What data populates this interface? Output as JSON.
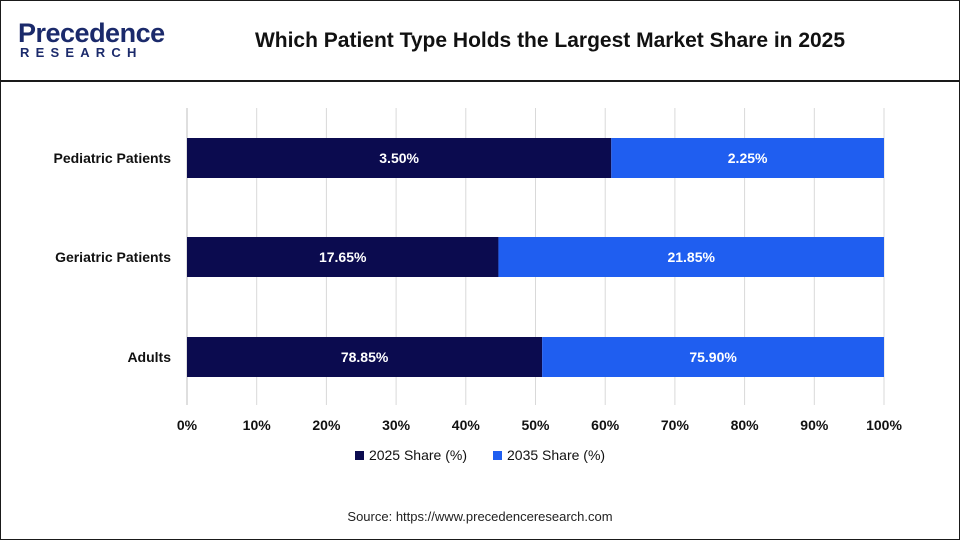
{
  "header": {
    "logo_main": "Precedence",
    "logo_sub": "RESEARCH",
    "title": "Which Patient Type Holds the Largest Market Share in 2025"
  },
  "colors": {
    "series_2025": "#0b0b4f",
    "series_2035": "#1f5ef0",
    "grid": "#d9d9d9",
    "brand": "#1b2a6b"
  },
  "chart_data": {
    "type": "bar",
    "orientation": "horizontal",
    "stacked": true,
    "normalized": "100%",
    "categories": [
      "Pediatric Patients",
      "Geriatric Patients",
      "Adults"
    ],
    "series": [
      {
        "name": "2025 Share (%)",
        "values": [
          3.5,
          17.65,
          78.85
        ],
        "labels": [
          "3.50%",
          "17.65%",
          "78.85%"
        ]
      },
      {
        "name": "2035 Share (%)",
        "values": [
          2.25,
          21.85,
          75.9
        ],
        "labels": [
          "2.25%",
          "21.85%",
          "75.90%"
        ]
      }
    ],
    "xlim": [
      0,
      100
    ],
    "xticks": [
      "0%",
      "10%",
      "20%",
      "30%",
      "40%",
      "50%",
      "60%",
      "70%",
      "80%",
      "90%",
      "100%"
    ],
    "grid": true,
    "legend_position": "bottom"
  },
  "source": "Source: https://www.precedenceresearch.com"
}
